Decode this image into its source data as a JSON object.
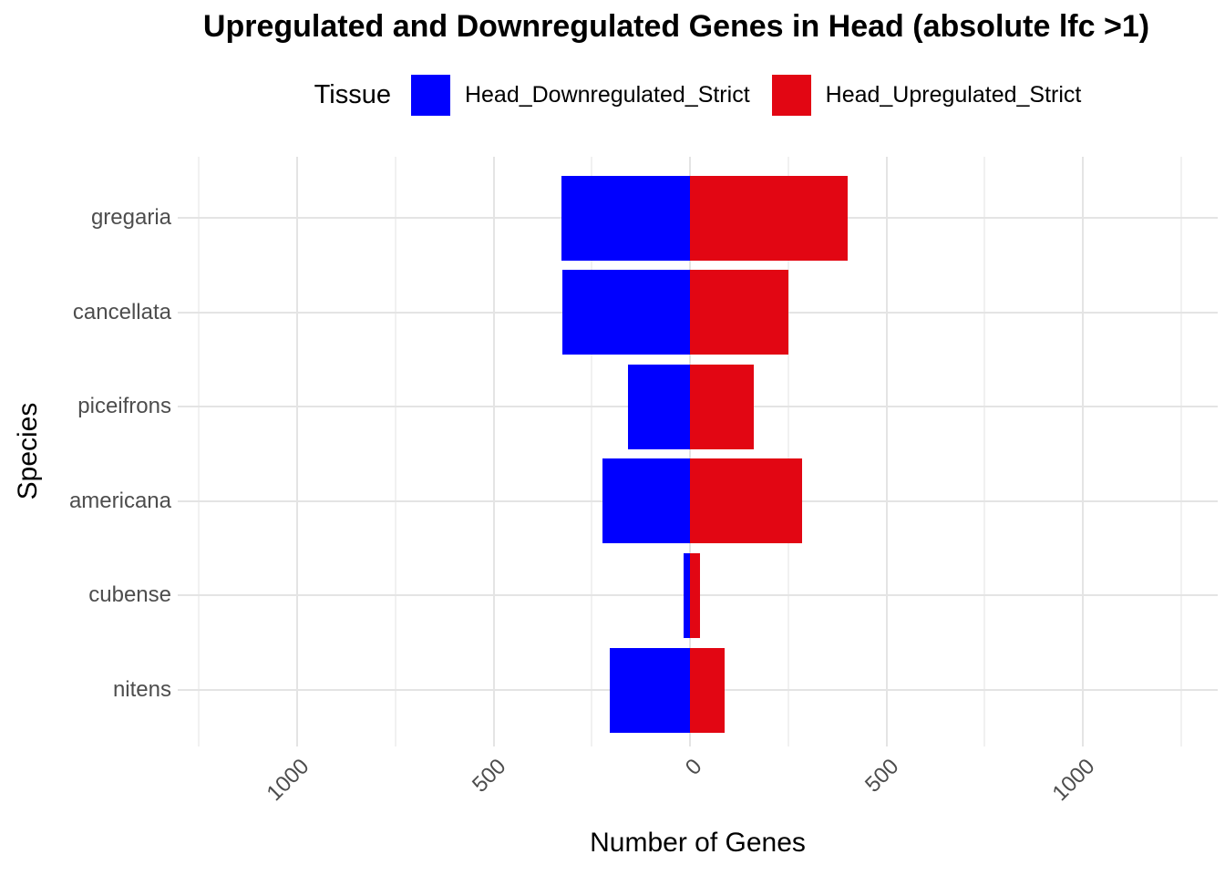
{
  "header": {
    "title": "Upregulated and Downregulated Genes in Head (absolute lfc >1)"
  },
  "legend": {
    "title": "Tissue",
    "position": "top",
    "items": [
      {
        "label": "Head_Downregulated_Strict",
        "color": "#0000FF"
      },
      {
        "label": "Head_Upregulated_Strict",
        "color": "#E20613"
      }
    ]
  },
  "chart_data": {
    "type": "bar",
    "subtype": "horizontal-diverging",
    "title": "Upregulated and Downregulated Genes in Head (absolute lfc >1)",
    "xlabel": "Number of Genes",
    "ylabel": "Species",
    "categories": [
      "gregaria",
      "cancellata",
      "piceifrons",
      "americana",
      "cubense",
      "nitens"
    ],
    "series": [
      {
        "name": "Head_Downregulated_Strict",
        "color": "#0000FF",
        "direction": "left",
        "values": [
          327,
          325,
          158,
          223,
          16,
          204
        ]
      },
      {
        "name": "Head_Upregulated_Strict",
        "color": "#E20613",
        "direction": "right",
        "values": [
          400,
          251,
          162,
          285,
          25,
          88
        ]
      }
    ],
    "x_axis": {
      "range": [
        -1304,
        1343
      ],
      "major_ticks": [
        -1000,
        -500,
        0,
        500,
        1000
      ],
      "tick_labels": [
        "1000",
        "500",
        "0",
        "500",
        "1000"
      ],
      "minor_ticks": [
        -1250,
        -750,
        -250,
        250,
        750,
        1250
      ]
    },
    "grid": true,
    "legend_position": "top",
    "colors": {
      "grid_major": "#E4E4E4",
      "grid_minor": "#F1F1F1",
      "tick_text": "#4D4D4D",
      "title_text": "#000000"
    }
  }
}
